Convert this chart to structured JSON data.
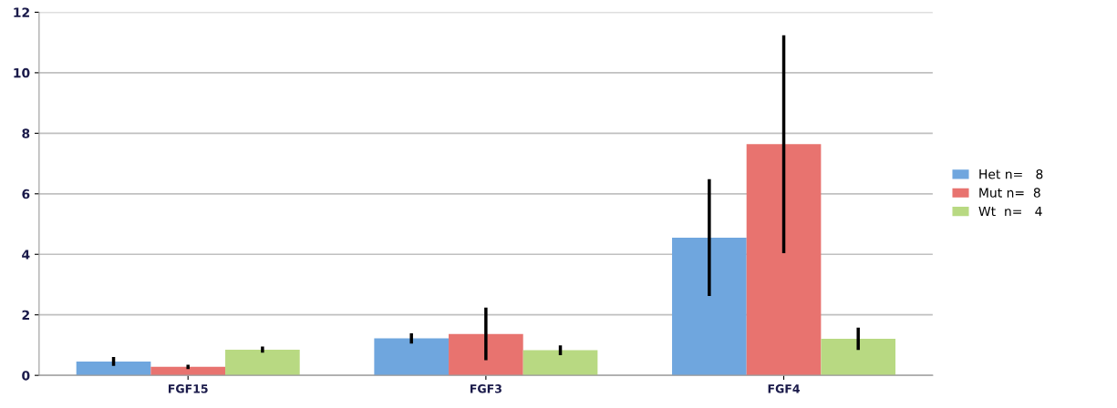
{
  "chart_data": {
    "type": "bar",
    "categories": [
      "FGF15",
      "FGF3",
      "FGF4"
    ],
    "series": [
      {
        "name": "Het n=   8",
        "color": "#6fa6de",
        "values": [
          0.46,
          1.22,
          4.55
        ],
        "errors": [
          0.15,
          0.17,
          1.93
        ]
      },
      {
        "name": "Mut n=  8",
        "color": "#e8736f",
        "values": [
          0.28,
          1.37,
          7.64
        ],
        "errors": [
          0.07,
          0.87,
          3.6
        ]
      },
      {
        "name": "Wt  n=   4",
        "color": "#b8d982",
        "values": [
          0.85,
          0.83,
          1.21
        ],
        "errors": [
          0.1,
          0.16,
          0.37
        ]
      }
    ],
    "ylim": [
      0,
      12
    ],
    "yticks": [
      0,
      2,
      4,
      6,
      8,
      10,
      12
    ],
    "grid": "y",
    "legend": "right"
  }
}
